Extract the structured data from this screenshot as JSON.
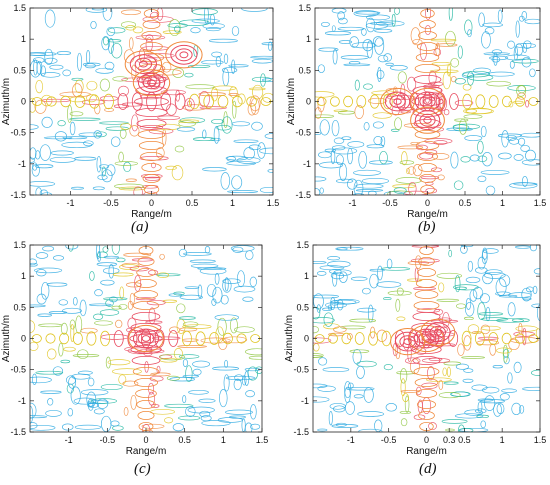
{
  "chart_data": [
    {
      "type": "contour",
      "panel_label": "(a)",
      "xlabel": "Range/m",
      "ylabel": "Azimuth/m",
      "xlim": [
        -1.5,
        1.5
      ],
      "ylim": [
        -1.5,
        1.5
      ],
      "xticks": [
        -1,
        -0.5,
        0,
        0.5,
        1,
        1.5
      ],
      "yticks": [
        -1.5,
        -1,
        -0.5,
        0,
        0.5,
        1,
        1.5
      ],
      "xticklabels": [
        "-1",
        "-0.5",
        "0",
        "0.5",
        "1",
        "1.5"
      ],
      "yticklabels": [
        "-1.5",
        "-1",
        "-0.5",
        "0",
        "0.5",
        "1",
        "1.5"
      ],
      "pattern": "cross",
      "peaks": [
        {
          "x": 0.4,
          "y": 0.75
        },
        {
          "x": -0.1,
          "y": 0.6
        },
        {
          "x": 0.0,
          "y": 0.3
        }
      ],
      "colors": [
        "#2aa8e0",
        "#1fb6a0",
        "#8ec63f",
        "#e0c420",
        "#f08a3c",
        "#e84a5f"
      ]
    },
    {
      "type": "contour",
      "panel_label": "(b)",
      "xlabel": "Range/m",
      "ylabel": "Azimuth/m",
      "xlim": [
        -1.5,
        1.5
      ],
      "ylim": [
        -1.5,
        1.5
      ],
      "xticks": [
        -1,
        -0.5,
        0,
        0.5,
        1,
        1.5
      ],
      "yticks": [
        -1.5,
        -1,
        -0.5,
        0,
        0.5,
        1,
        1.5
      ],
      "xticklabels": [
        "-1",
        "-0.5",
        "0",
        "0.5",
        "1",
        "1.5"
      ],
      "yticklabels": [
        "-1.5",
        "-1",
        "-0.5",
        "0",
        "0.5",
        "1",
        "1.5"
      ],
      "pattern": "cross",
      "peaks": [
        {
          "x": 0.0,
          "y": 0.0
        },
        {
          "x": 0.0,
          "y": -0.3
        },
        {
          "x": -0.4,
          "y": 0.0
        }
      ],
      "colors": [
        "#2aa8e0",
        "#1fb6a0",
        "#8ec63f",
        "#e0c420",
        "#f08a3c",
        "#e84a5f"
      ]
    },
    {
      "type": "contour",
      "panel_label": "(c)",
      "xlabel": "Range/m",
      "ylabel": "Azimuth/m",
      "xlim": [
        -1.5,
        1.5
      ],
      "ylim": [
        -1.5,
        1.5
      ],
      "xticks": [
        -1,
        -0.5,
        0,
        0.5,
        1,
        1.5
      ],
      "yticks": [
        -1.5,
        -1,
        -0.5,
        0,
        0.5,
        1,
        1.5
      ],
      "xticklabels": [
        "-1",
        "-0.5",
        "0",
        "0.5",
        "1",
        "1.5"
      ],
      "yticklabels": [
        "-1.5",
        "-1",
        "-0.5",
        "0",
        "0.5",
        "1",
        "1.5"
      ],
      "pattern": "cross",
      "peaks": [
        {
          "x": 0.0,
          "y": 0.0
        }
      ],
      "colors": [
        "#2aa8e0",
        "#1fb6a0",
        "#8ec63f",
        "#e0c420",
        "#f08a3c",
        "#e84a5f"
      ]
    },
    {
      "type": "contour",
      "panel_label": "(d)",
      "xlabel": "Range/m",
      "ylabel": "Azimuth/m",
      "xlim": [
        -1.5,
        1.5
      ],
      "ylim": [
        -1.5,
        1.5
      ],
      "xticks": [
        -1,
        -0.5,
        0,
        0.3,
        0.5,
        1,
        1.5
      ],
      "yticks": [
        -1.5,
        -1,
        -0.5,
        0,
        0.5,
        1,
        1.5
      ],
      "xticklabels": [
        "-1",
        "-0.5",
        "0",
        "0.3",
        "0.5",
        "1",
        "1.5"
      ],
      "yticklabels": [
        "-1.5",
        "-1",
        "-0.5",
        "0",
        "0.5",
        "1",
        "1.5"
      ],
      "pattern": "cross",
      "peaks": [
        {
          "x": 0.0,
          "y": 0.0
        },
        {
          "x": -0.25,
          "y": -0.05
        },
        {
          "x": 0.15,
          "y": 0.1
        }
      ],
      "colors": [
        "#2aa8e0",
        "#1fb6a0",
        "#8ec63f",
        "#e0c420",
        "#f08a3c",
        "#e84a5f"
      ]
    }
  ]
}
